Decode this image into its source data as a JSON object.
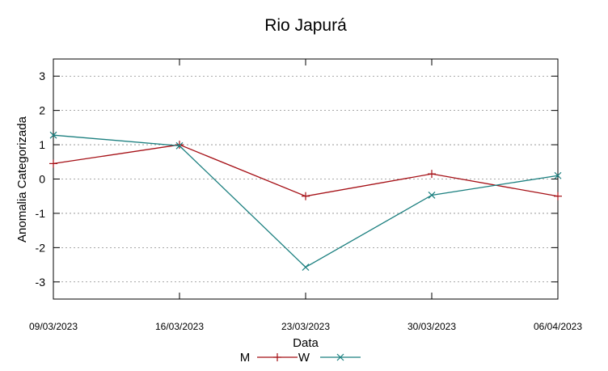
{
  "chart_data": {
    "type": "line",
    "title": "Rio Japurá",
    "xlabel": "Data",
    "ylabel": "Anomalia Categorizada",
    "categories": [
      "09/03/2023",
      "16/03/2023",
      "23/03/2023",
      "30/03/2023",
      "06/04/2023"
    ],
    "ylim": [
      -3.5,
      3.5
    ],
    "yticks": [
      3,
      2,
      1,
      0,
      -1,
      -2,
      -3
    ],
    "ytick_labels": [
      "3",
      "2",
      "1",
      "0",
      "-1",
      "-2",
      "-3"
    ],
    "grid": true,
    "legend_position": "bottom-center",
    "series": [
      {
        "name": "M",
        "marker": "+",
        "color": "#a50f15",
        "values": [
          0.45,
          1.0,
          -0.5,
          0.15,
          -0.5
        ]
      },
      {
        "name": "W",
        "marker": "x",
        "color": "#1b7f7f",
        "values": [
          1.28,
          0.97,
          -2.57,
          -0.47,
          0.1
        ]
      }
    ]
  }
}
